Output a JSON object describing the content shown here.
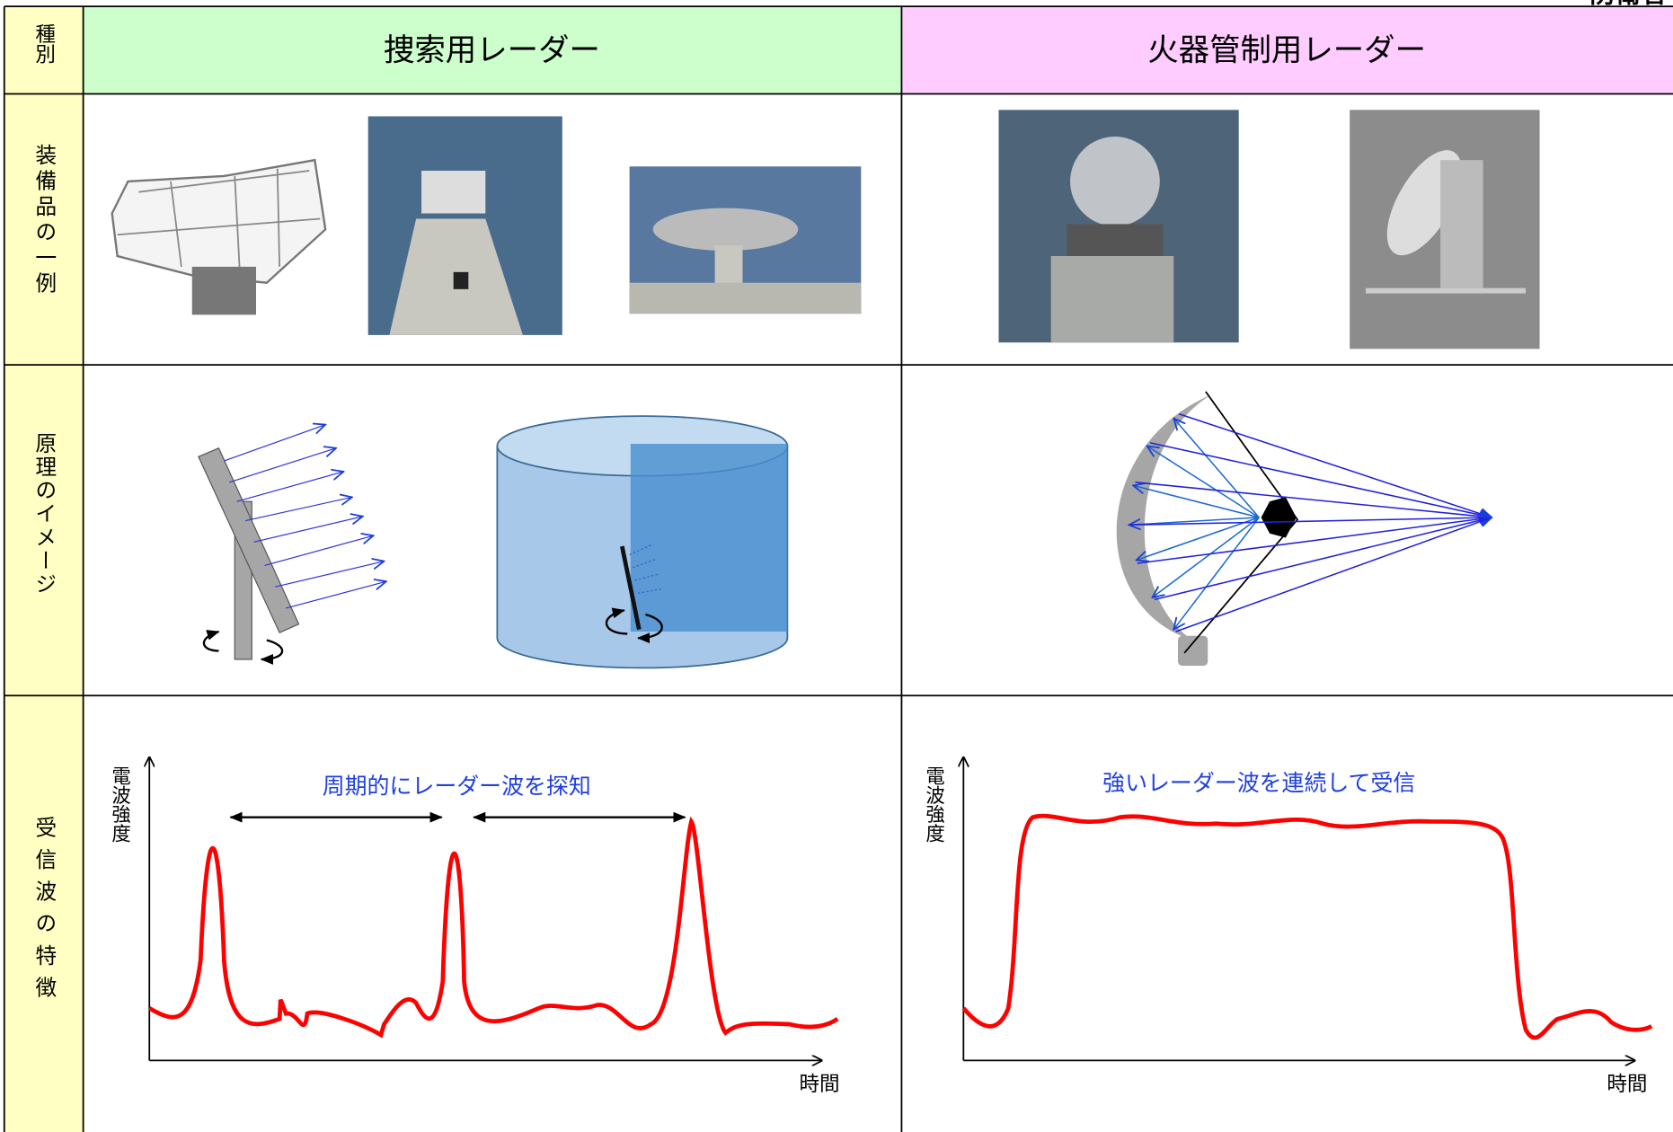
{
  "corner_label": "防衛省",
  "header": {
    "row_label": "種別",
    "columns": [
      "捜索用レーダー",
      "火器管制用レーダー"
    ]
  },
  "rows": [
    {
      "label": "装備品の一例"
    },
    {
      "label": "原理のイメージ"
    },
    {
      "label": "受信波の特徴"
    }
  ],
  "graphs": [
    {
      "y_label": "電波強度",
      "x_label": "時間",
      "annotation": "周期的にレーダー波を探知"
    },
    {
      "y_label": "電波強度",
      "x_label": "時間",
      "annotation": "強いレーダー波を連続して受信"
    }
  ]
}
